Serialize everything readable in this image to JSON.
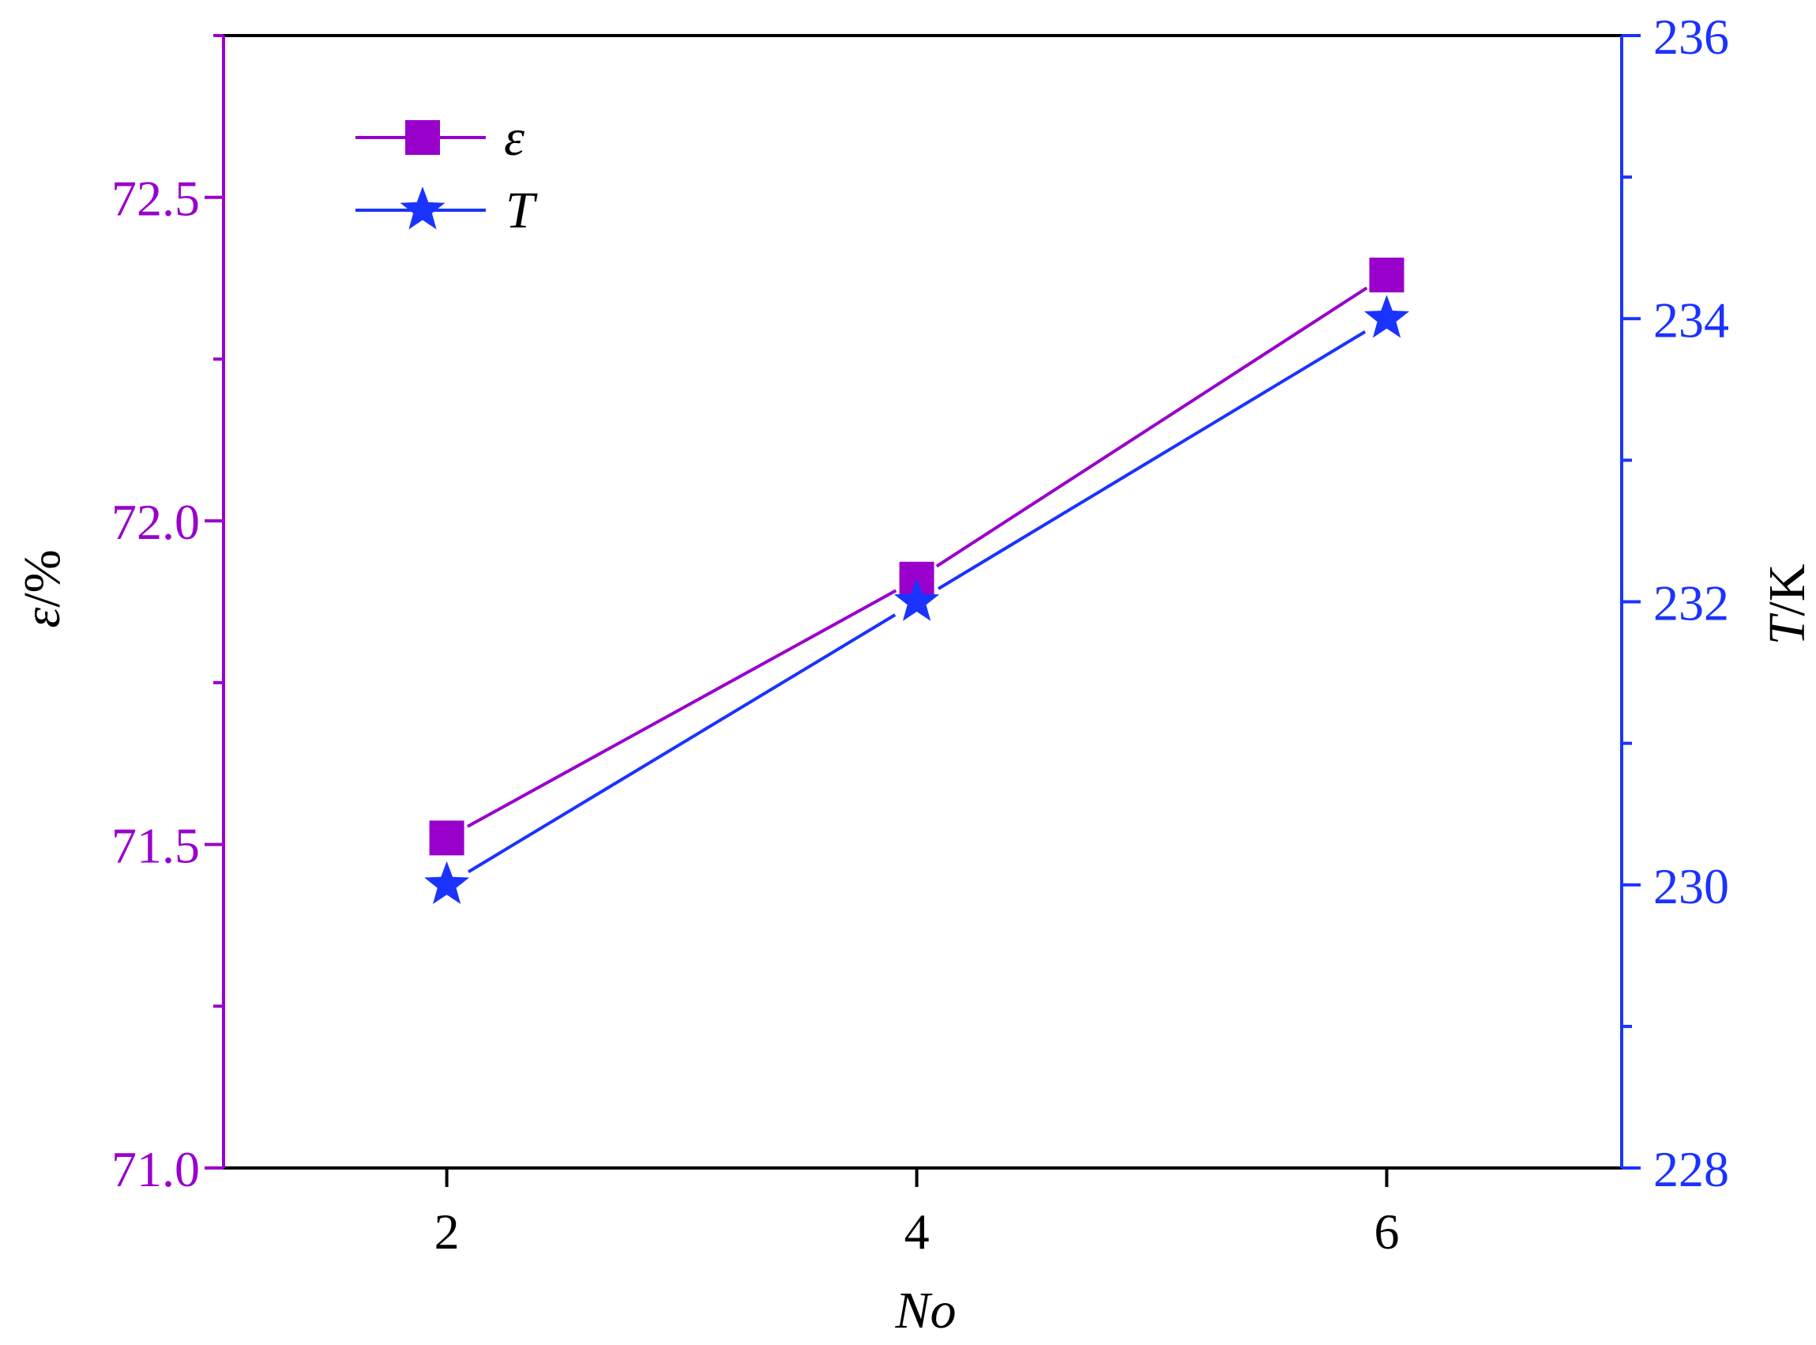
{
  "chart_data": {
    "type": "line",
    "x": [
      2,
      4,
      6
    ],
    "xlabel": "No",
    "xlim": [
      1.05,
      7.0
    ],
    "xticks": [
      "2",
      "4",
      "6"
    ],
    "ylabel_left": {
      "symbol": "ε",
      "unit": "/%"
    },
    "ylim_left": [
      71.0,
      72.75
    ],
    "yticks_left": [
      "71.0",
      "71.5",
      "72.0",
      "72.5"
    ],
    "ylabel_right": {
      "symbol": "T",
      "unit": "/K"
    },
    "ylim_right": [
      228,
      236
    ],
    "yticks_right": [
      "228",
      "230",
      "232",
      "234",
      "236"
    ],
    "series": [
      {
        "name": "ε",
        "axis": "left",
        "marker": "square",
        "color": "#9900cc",
        "values": [
          71.51,
          71.91,
          72.38
        ]
      },
      {
        "name": "T",
        "axis": "right",
        "marker": "star",
        "color": "#1a33ff",
        "values": [
          230.0,
          232.0,
          234.0
        ]
      }
    ],
    "legend_position": "top-left",
    "grid": false,
    "colors": {
      "left_axis": "#9900cc",
      "right_axis": "#1a33ff",
      "frame": "#000000"
    }
  }
}
